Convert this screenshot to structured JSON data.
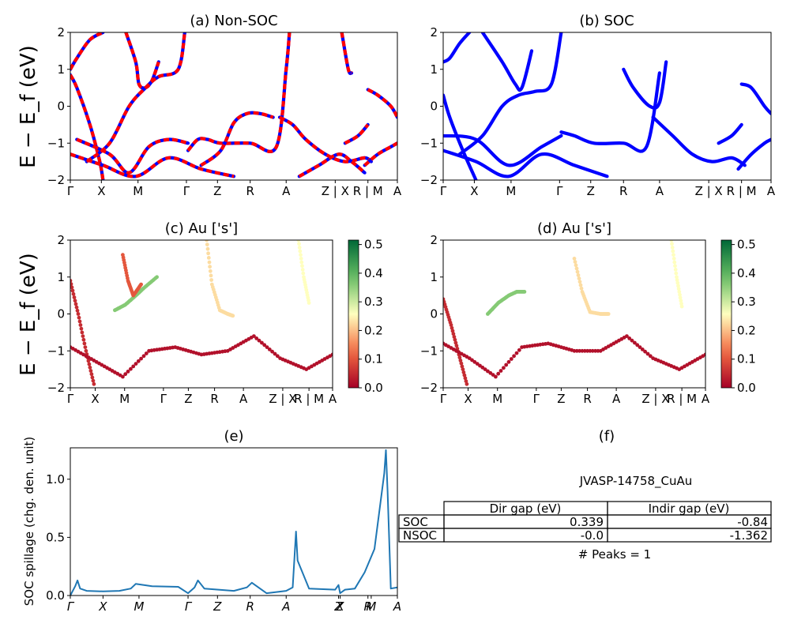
{
  "figure": {
    "background": "#ffffff"
  },
  "panels": {
    "a": {
      "title": "(a) Non-SOC",
      "ylabel": "E − E_f (eV)",
      "ylim": [
        -2,
        2
      ],
      "yticks": [
        "2",
        "1",
        "0",
        "−1",
        "−2"
      ],
      "xticks": [
        "Γ",
        "X",
        "M",
        "Γ",
        "Z",
        "R",
        "A",
        "Z | X",
        "R | M",
        "A"
      ],
      "colors": {
        "primary": "#ff0000",
        "secondary": "#0000ff"
      }
    },
    "b": {
      "title": "(b) SOC",
      "ylim": [
        -2,
        2
      ],
      "yticks": [
        "2",
        "1",
        "0",
        "−1",
        "−2"
      ],
      "xticks": [
        "Γ",
        "X",
        "M",
        "Γ",
        "Z",
        "R",
        "A",
        "Z | X",
        "R | M",
        "A"
      ],
      "colors": {
        "primary": "#0000ff"
      }
    },
    "c": {
      "title": "(c)  Au ['s']",
      "ylabel": "E − E_f (eV)",
      "ylim": [
        -2,
        2
      ],
      "yticks": [
        "2",
        "1",
        "0",
        "−1",
        "−2"
      ],
      "xticks": [
        "Γ",
        "X",
        "M",
        "Γ",
        "Z",
        "R",
        "A",
        "Z | X",
        "R | M",
        "A"
      ],
      "colorbar": {
        "min": 0.0,
        "max": 0.5,
        "ticks": [
          "0.5",
          "0.4",
          "0.3",
          "0.2",
          "0.1",
          "0.0"
        ],
        "colormap": "RdYlGn"
      }
    },
    "d": {
      "title": "(d) Au ['s']",
      "ylim": [
        -2,
        2
      ],
      "yticks": [
        "2",
        "1",
        "0",
        "−1",
        "−2"
      ],
      "xticks": [
        "Γ",
        "X",
        "M",
        "Γ",
        "Z",
        "R",
        "A",
        "Z | X",
        "R | M",
        "A"
      ],
      "colorbar": {
        "min": 0.0,
        "max": 0.5,
        "ticks": [
          "0.5",
          "0.4",
          "0.3",
          "0.2",
          "0.1",
          "0.0"
        ],
        "colormap": "RdYlGn"
      }
    },
    "e": {
      "title": "(e)",
      "ylabel": "SOC spillage (chg. den. unit)",
      "ylim": [
        0,
        1.27
      ],
      "yticks": [
        "1.0",
        "0.5",
        "0.0"
      ],
      "xticks": [
        "Γ",
        "X",
        "M",
        "Γ",
        "Z",
        "R",
        "A",
        "Z",
        "X",
        "R",
        "M",
        "A"
      ],
      "color": "#1f77b4"
    },
    "f": {
      "title": "(f)",
      "material": "JVASP-14758_CuAu",
      "table": {
        "columns": [
          "Dir gap (eV)",
          "Indir gap (eV)"
        ],
        "rows": [
          {
            "label": "SOC",
            "dir": "0.339",
            "indir": "-0.84"
          },
          {
            "label": "NSOC",
            "dir": "-0.0",
            "indir": "-1.362"
          }
        ]
      },
      "peaks": "# Peaks = 1"
    }
  },
  "chart_data": [
    {
      "type": "line",
      "title": "(a) Non-SOC",
      "ylabel": "E − E_f (eV)",
      "ylim": [
        -2,
        2
      ],
      "x_labels": [
        "Γ",
        "X",
        "M",
        "Γ",
        "Z",
        "R",
        "A",
        "Z | X",
        "R | M",
        "A"
      ],
      "series": [
        {
          "x": [
            0.0,
            0.02,
            0.06,
            0.09,
            0.1
          ],
          "values": [
            0.85,
            0.5,
            -0.5,
            -1.5,
            -2.0
          ]
        },
        {
          "x": [
            0.0,
            0.02,
            0.06,
            0.1
          ],
          "values": [
            1.0,
            1.3,
            1.8,
            2.0
          ]
        },
        {
          "x": [
            0.17,
            0.2,
            0.21,
            0.23,
            0.25,
            0.27
          ],
          "values": [
            2.0,
            1.2,
            0.6,
            0.5,
            0.7,
            1.2
          ]
        },
        {
          "x": [
            0.05,
            0.12,
            0.18,
            0.23,
            0.27,
            0.33,
            0.35
          ],
          "values": [
            -1.5,
            -1.0,
            0.0,
            0.5,
            0.8,
            1.0,
            2.0
          ]
        },
        {
          "x": [
            0.02,
            0.12,
            0.18,
            0.24,
            0.3,
            0.36
          ],
          "values": [
            -0.9,
            -1.3,
            -1.8,
            -1.1,
            -0.9,
            -1.0
          ]
        },
        {
          "x": [
            0.0,
            0.1,
            0.2,
            0.3,
            0.4,
            0.5
          ],
          "values": [
            -1.3,
            -1.6,
            -1.9,
            -1.4,
            -1.7,
            -1.9
          ]
        },
        {
          "x": [
            0.36,
            0.39,
            0.42,
            0.46,
            0.55,
            0.63,
            0.66,
            0.67
          ],
          "values": [
            -1.2,
            -0.9,
            -0.9,
            -1.0,
            -1.0,
            -1.1,
            1.0,
            2.0
          ]
        },
        {
          "x": [
            0.4,
            0.46,
            0.5,
            0.54,
            0.58,
            0.62
          ],
          "values": [
            -1.6,
            -1.2,
            -0.45,
            -0.2,
            -0.2,
            -0.3
          ]
        },
        {
          "x": [
            0.64,
            0.68,
            0.72,
            0.78,
            0.84,
            0.9,
            0.92
          ],
          "values": [
            -0.3,
            -0.5,
            -0.9,
            -1.3,
            -1.5,
            -1.4,
            -1.5
          ]
        },
        {
          "x": [
            0.7,
            0.76,
            0.82,
            0.86,
            0.9
          ],
          "values": [
            -1.9,
            -1.6,
            -1.3,
            -1.5,
            -1.8
          ]
        },
        {
          "x": [
            0.83,
            0.85,
            0.86
          ],
          "values": [
            2.0,
            1.0,
            0.9
          ]
        },
        {
          "x": [
            0.84,
            0.88,
            0.91
          ],
          "values": [
            -1.0,
            -0.8,
            -0.5
          ]
        },
        {
          "x": [
            0.91,
            0.94,
            0.98,
            1.0
          ],
          "values": [
            0.45,
            0.3,
            0.0,
            -0.3
          ]
        },
        {
          "x": [
            0.9,
            0.94,
            0.98,
            1.0
          ],
          "values": [
            -1.6,
            -1.3,
            -1.1,
            -1.0
          ]
        }
      ]
    },
    {
      "type": "line",
      "title": "(b) SOC",
      "ylim": [
        -2,
        2
      ],
      "x_labels": [
        "Γ",
        "X",
        "M",
        "Γ",
        "Z",
        "R",
        "A",
        "Z | X",
        "R | M",
        "A"
      ],
      "series": [
        {
          "x": [
            0.0,
            0.02,
            0.05,
            0.08
          ],
          "values": [
            1.2,
            1.3,
            1.7,
            2.0
          ]
        },
        {
          "x": [
            0.0,
            0.02,
            0.06,
            0.1
          ],
          "values": [
            0.3,
            -0.3,
            -1.2,
            -2.0
          ]
        },
        {
          "x": [
            0.12,
            0.18,
            0.22,
            0.24,
            0.27
          ],
          "values": [
            2.0,
            1.2,
            0.6,
            0.5,
            1.5
          ]
        },
        {
          "x": [
            0.05,
            0.12,
            0.18,
            0.23,
            0.28,
            0.33,
            0.36
          ],
          "values": [
            -1.3,
            -0.8,
            0.0,
            0.3,
            0.4,
            0.6,
            2.0
          ]
        },
        {
          "x": [
            0.0,
            0.1,
            0.2,
            0.3,
            0.36
          ],
          "values": [
            -0.8,
            -0.9,
            -1.6,
            -1.1,
            -0.8
          ]
        },
        {
          "x": [
            0.0,
            0.1,
            0.2,
            0.3,
            0.4,
            0.5
          ],
          "values": [
            -1.2,
            -1.5,
            -1.9,
            -1.3,
            -1.6,
            -1.9
          ]
        },
        {
          "x": [
            0.36,
            0.4,
            0.46,
            0.55,
            0.62,
            0.66
          ],
          "values": [
            -0.7,
            -0.8,
            -1.0,
            -1.0,
            -1.1,
            0.9
          ]
        },
        {
          "x": [
            0.55,
            0.58,
            0.63,
            0.66,
            0.68
          ],
          "values": [
            1.0,
            0.5,
            0.0,
            0.1,
            1.2
          ]
        },
        {
          "x": [
            0.64,
            0.7,
            0.76,
            0.82,
            0.88,
            0.92
          ],
          "values": [
            -0.3,
            -0.8,
            -1.3,
            -1.5,
            -1.4,
            -1.6
          ]
        },
        {
          "x": [
            0.84,
            0.88,
            0.91
          ],
          "values": [
            -1.0,
            -0.8,
            -0.5
          ]
        },
        {
          "x": [
            0.91,
            0.94,
            0.98,
            1.0
          ],
          "values": [
            0.6,
            0.5,
            0.0,
            -0.2
          ]
        },
        {
          "x": [
            0.9,
            0.94,
            0.98,
            1.0
          ],
          "values": [
            -1.7,
            -1.3,
            -1.0,
            -0.9
          ]
        }
      ]
    },
    {
      "type": "scatter",
      "title": "(c)  Au ['s']",
      "ylabel": "E − E_f (eV)",
      "ylim": [
        -2,
        2
      ],
      "colorbar_range": [
        0.0,
        0.5
      ],
      "x_labels": [
        "Γ",
        "X",
        "M",
        "Γ",
        "Z",
        "R",
        "A",
        "Z | X",
        "R | M",
        "A"
      ],
      "series": [
        {
          "x": [
            0.0,
            0.03,
            0.06,
            0.09
          ],
          "values": [
            0.9,
            0.0,
            -1.0,
            -1.9
          ],
          "weight": 0.05
        },
        {
          "x": [
            0.17,
            0.21,
            0.25,
            0.28,
            0.33
          ],
          "values": [
            0.1,
            0.25,
            0.5,
            0.7,
            1.0
          ],
          "weight": 0.35
        },
        {
          "x": [
            0.2,
            0.22,
            0.24,
            0.27
          ],
          "values": [
            1.6,
            0.9,
            0.5,
            0.8
          ],
          "weight": 0.1
        },
        {
          "x": [
            0.52,
            0.54,
            0.57,
            0.6,
            0.62
          ],
          "values": [
            2.0,
            0.8,
            0.1,
            0.0,
            -0.05
          ],
          "weight": 0.22
        },
        {
          "x": [
            0.87,
            0.89,
            0.91
          ],
          "values": [
            2.0,
            1.0,
            0.3
          ],
          "weight": 0.25
        },
        {
          "x": [
            0.0,
            0.1,
            0.2,
            0.3,
            0.4,
            0.5,
            0.6,
            0.7,
            0.8,
            0.9,
            1.0
          ],
          "values": [
            -0.9,
            -1.3,
            -1.7,
            -1.0,
            -0.9,
            -1.1,
            -1.0,
            -0.6,
            -1.2,
            -1.5,
            -1.1
          ],
          "weight": 0.02
        }
      ]
    },
    {
      "type": "scatter",
      "title": "(d) Au ['s']",
      "ylim": [
        -2,
        2
      ],
      "colorbar_range": [
        0.0,
        0.5
      ],
      "x_labels": [
        "Γ",
        "X",
        "M",
        "Γ",
        "Z",
        "R",
        "A",
        "Z | X",
        "R | M",
        "A"
      ],
      "series": [
        {
          "x": [
            0.0,
            0.03,
            0.06,
            0.09
          ],
          "values": [
            0.4,
            -0.3,
            -1.1,
            -1.9
          ],
          "weight": 0.05
        },
        {
          "x": [
            0.17,
            0.21,
            0.25,
            0.28,
            0.31
          ],
          "values": [
            0.0,
            0.3,
            0.5,
            0.6,
            0.6
          ],
          "weight": 0.35
        },
        {
          "x": [
            0.5,
            0.53,
            0.56,
            0.6,
            0.63
          ],
          "values": [
            1.5,
            0.6,
            0.05,
            0.0,
            0.0
          ],
          "weight": 0.22
        },
        {
          "x": [
            0.87,
            0.89,
            0.91
          ],
          "values": [
            2.0,
            1.0,
            0.2
          ],
          "weight": 0.25
        },
        {
          "x": [
            0.0,
            0.1,
            0.2,
            0.3,
            0.4,
            0.5,
            0.6,
            0.7,
            0.8,
            0.9,
            1.0
          ],
          "values": [
            -0.8,
            -1.2,
            -1.7,
            -0.9,
            -0.8,
            -1.0,
            -1.0,
            -0.6,
            -1.2,
            -1.5,
            -1.1
          ],
          "weight": 0.02
        }
      ]
    },
    {
      "type": "line",
      "title": "(e)",
      "ylabel": "SOC spillage (chg. den. unit)",
      "ylim": [
        0,
        1.27
      ],
      "x_labels": [
        "Γ",
        "X",
        "M",
        "Γ",
        "Z",
        "R",
        "A",
        "Z",
        "X",
        "R",
        "M",
        "A"
      ],
      "series": [
        {
          "x": [
            0.0,
            0.015,
            0.022,
            0.03,
            0.05,
            0.1,
            0.15,
            0.185,
            0.2,
            0.25,
            0.33,
            0.36,
            0.38,
            0.39,
            0.41,
            0.5,
            0.54,
            0.555,
            0.6,
            0.66,
            0.68,
            0.69,
            0.695,
            0.73,
            0.81,
            0.82,
            0.825,
            0.84,
            0.87,
            0.9,
            0.93,
            0.96,
            0.965,
            0.97,
            0.98,
            1.0
          ],
          "values": [
            0.0,
            0.08,
            0.13,
            0.06,
            0.04,
            0.035,
            0.04,
            0.06,
            0.1,
            0.08,
            0.075,
            0.02,
            0.07,
            0.13,
            0.06,
            0.04,
            0.07,
            0.11,
            0.02,
            0.04,
            0.07,
            0.55,
            0.3,
            0.06,
            0.05,
            0.09,
            0.02,
            0.05,
            0.06,
            0.2,
            0.4,
            1.05,
            1.25,
            0.9,
            0.06,
            0.07
          ]
        }
      ]
    },
    {
      "type": "table",
      "title": "(f)",
      "columns": [
        "",
        "Dir gap (eV)",
        "Indir gap (eV)"
      ],
      "rows": [
        [
          "SOC",
          "0.339",
          "-0.84"
        ],
        [
          "NSOC",
          "-0.0",
          "-1.362"
        ]
      ]
    }
  ]
}
